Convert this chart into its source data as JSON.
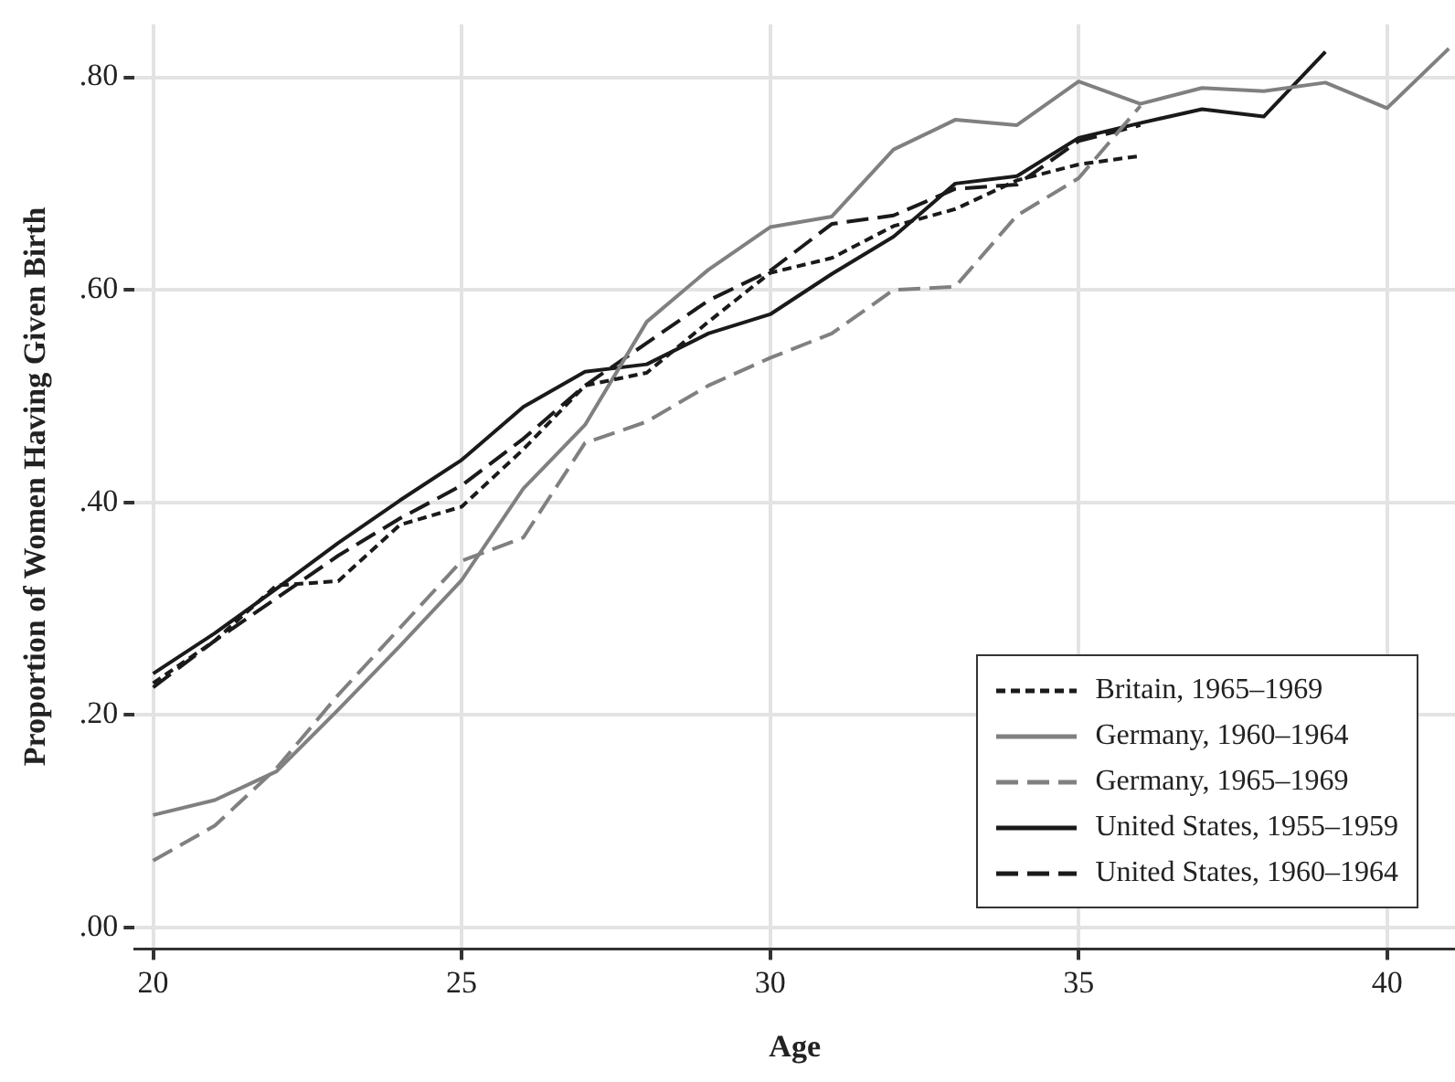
{
  "chart_data": {
    "type": "line",
    "xlabel": "Age",
    "ylabel": "Proportion of Women Having Given Birth",
    "xlim": [
      19.7,
      41.1
    ],
    "xticks": [
      20,
      25,
      30,
      35,
      40
    ],
    "ylim": [
      -0.02,
      0.85
    ],
    "yticks": [
      {
        "value": 0,
        "label": ".00"
      },
      {
        "value": 0.2,
        "label": ".20"
      },
      {
        "value": 0.4,
        "label": ".40"
      },
      {
        "value": 0.6,
        "label": ".60"
      },
      {
        "value": 0.8,
        "label": ".80"
      }
    ],
    "grid": true,
    "legend": "bottom right",
    "marker": "none",
    "series": [
      {
        "name": "Britain, 1965–1969",
        "color": "#1a1a1a",
        "line_style": "dotted",
        "x": [
          20,
          21,
          22,
          23,
          24,
          25,
          26,
          27,
          28,
          29,
          30,
          31,
          32,
          33,
          34,
          35,
          36
        ],
        "values": [
          0.23,
          0.27,
          0.322,
          0.326,
          0.379,
          0.396,
          0.45,
          0.51,
          0.522,
          0.57,
          0.616,
          0.63,
          0.66,
          0.676,
          0.703,
          0.718,
          0.726
        ]
      },
      {
        "name": "Germany, 1960–1964",
        "color": "#808080",
        "line_style": "solid",
        "x": [
          20,
          21,
          22,
          23,
          24,
          25,
          26,
          27,
          28,
          29,
          30,
          31,
          32,
          33,
          34,
          35,
          36,
          37,
          38,
          39,
          40,
          41
        ],
        "values": [
          0.106,
          0.12,
          0.147,
          0.205,
          0.265,
          0.327,
          0.413,
          0.473,
          0.57,
          0.619,
          0.659,
          0.669,
          0.732,
          0.76,
          0.755,
          0.796,
          0.775,
          0.79,
          0.787,
          0.795,
          0.771,
          0.827
        ]
      },
      {
        "name": "Germany, 1965–1969",
        "color": "#808080",
        "line_style": "dashed",
        "x": [
          20,
          21,
          22,
          23,
          24,
          25,
          26,
          27,
          28,
          29,
          30,
          31,
          32,
          33,
          34,
          35,
          36
        ],
        "values": [
          0.063,
          0.096,
          0.15,
          0.219,
          0.282,
          0.345,
          0.367,
          0.456,
          0.476,
          0.51,
          0.536,
          0.559,
          0.6,
          0.603,
          0.67,
          0.705,
          0.773
        ]
      },
      {
        "name": "United States, 1955–1959",
        "color": "#1a1a1a",
        "line_style": "solid",
        "x": [
          20,
          21,
          22,
          23,
          24,
          25,
          26,
          27,
          28,
          29,
          30,
          31,
          32,
          33,
          34,
          35,
          36,
          37,
          38,
          39
        ],
        "values": [
          0.239,
          0.277,
          0.319,
          0.362,
          0.402,
          0.44,
          0.49,
          0.523,
          0.53,
          0.559,
          0.577,
          0.615,
          0.65,
          0.7,
          0.707,
          0.743,
          0.757,
          0.77,
          0.763,
          0.824
        ]
      },
      {
        "name": "United States, 1960–1964",
        "color": "#1a1a1a",
        "line_style": "dashed",
        "x": [
          20,
          21,
          22,
          23,
          24,
          25,
          26,
          27,
          28,
          29,
          30,
          31,
          32,
          33,
          34,
          35,
          36
        ],
        "values": [
          0.226,
          0.27,
          0.31,
          0.35,
          0.385,
          0.416,
          0.46,
          0.51,
          0.55,
          0.59,
          0.618,
          0.662,
          0.67,
          0.695,
          0.699,
          0.74,
          0.755
        ]
      }
    ]
  }
}
